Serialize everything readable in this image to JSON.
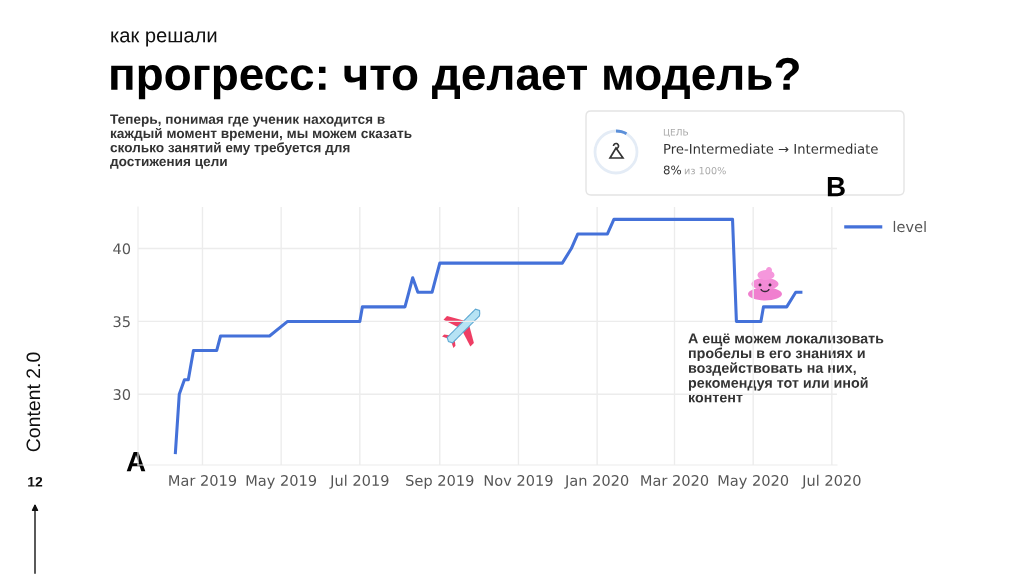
{
  "chart_data": {
    "type": "line",
    "title": "прогресс: что делает модель?",
    "subtitle": "как решали",
    "x": [
      "2019-02-08",
      "2019-02-11",
      "2019-02-15",
      "2019-02-18",
      "2019-02-22",
      "2019-03-12",
      "2019-03-15",
      "2019-04-22",
      "2019-05-06",
      "2019-07-01",
      "2019-07-03",
      "2019-08-05",
      "2019-08-08",
      "2019-08-11",
      "2019-08-15",
      "2019-08-26",
      "2019-08-29",
      "2019-09-01",
      "2019-12-05",
      "2019-12-12",
      "2019-12-17",
      "2020-01-09",
      "2020-01-14",
      "2020-04-15",
      "2020-04-18",
      "2020-05-07",
      "2020-05-09",
      "2020-05-27",
      "2020-06-03",
      "2020-06-07"
    ],
    "series": [
      {
        "name": "level",
        "color": "#4471d9",
        "values": [
          26,
          30,
          31,
          31,
          33,
          33,
          34,
          34,
          35,
          35,
          36,
          36,
          37,
          38,
          37,
          37,
          38,
          39,
          39,
          40,
          41,
          41,
          42,
          42,
          35,
          35,
          36,
          36,
          37,
          37
        ]
      }
    ],
    "xlim": [
      "2019-01-10",
      "2020-07-05"
    ],
    "xticks": [
      {
        "value": "2019-03",
        "label": "Mar 2019"
      },
      {
        "value": "2019-05",
        "label": "May 2019"
      },
      {
        "value": "2019-07",
        "label": "Jul 2019"
      },
      {
        "value": "2019-09",
        "label": "Sep 2019"
      },
      {
        "value": "2019-11",
        "label": "Nov 2019"
      },
      {
        "value": "2020-01",
        "label": "Jan 2020"
      },
      {
        "value": "2020-03",
        "label": "Mar 2020"
      },
      {
        "value": "2020-05",
        "label": "May 2020"
      },
      {
        "value": "2020-07",
        "label": "Jul 2020"
      }
    ],
    "ylim": [
      25.15,
      42.85
    ],
    "yticks": [
      30,
      35,
      40
    ],
    "grid": true,
    "legend": "top right",
    "line_style": "solid",
    "annotations": [
      "Теперь, понимая где ученик находится в каждый момент времени, мы можем сказать сколько занятий ему требуется для достижения цели",
      "ЦЕЛЬ",
      "Pre-Intermediate → Intermediate",
      "8%",
      "из 100%",
      "B",
      "А ещё можем локализовать пробелы в его знаниях и воздействовать на них, рекомендуя тот или иной контент",
      "A",
      "Content 2.0",
      "12"
    ]
  }
}
